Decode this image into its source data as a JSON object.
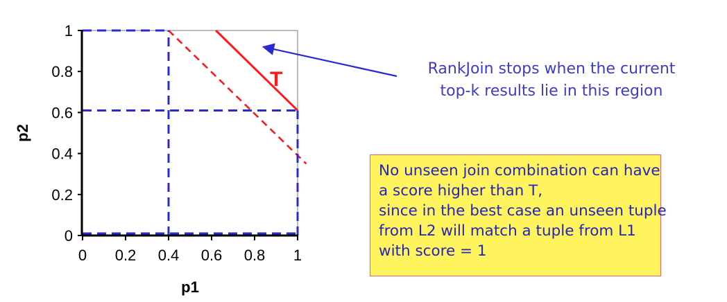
{
  "chart_data": {
    "type": "line",
    "xlabel": "p1",
    "ylabel": "p2",
    "xlim": [
      0,
      1
    ],
    "ylim": [
      0,
      1
    ],
    "x_ticks": [
      "0",
      "0.2",
      "0.4",
      "0.6",
      "0.8",
      "1"
    ],
    "y_ticks": [
      "0",
      "0.2",
      "0.4",
      "0.6",
      "0.8",
      "1"
    ],
    "grid": false,
    "threshold_label": "T",
    "series": [
      {
        "style": "red-solid",
        "points": [
          [
            0.62,
            1.0
          ],
          [
            1.0,
            0.61
          ]
        ]
      },
      {
        "style": "red-dashed",
        "points": [
          [
            0.4,
            1.0
          ],
          [
            1.04,
            0.35
          ]
        ]
      },
      {
        "style": "blue-dashed",
        "points": [
          [
            0.4,
            0.0
          ],
          [
            0.4,
            1.0
          ]
        ]
      },
      {
        "style": "blue-dashed",
        "points": [
          [
            0.0,
            0.61
          ],
          [
            1.0,
            0.61
          ]
        ]
      },
      {
        "style": "blue-dashed",
        "points": [
          [
            0.0,
            1.0
          ],
          [
            0.4,
            1.0
          ]
        ]
      },
      {
        "style": "blue-dashed",
        "points": [
          [
            0.0,
            0.01
          ],
          [
            1.0,
            0.01
          ]
        ]
      },
      {
        "style": "blue-dashed",
        "points": [
          [
            1.0,
            0.0
          ],
          [
            1.0,
            0.61
          ]
        ]
      }
    ]
  },
  "annotation": {
    "text": "RankJoin stops when the current\ntop-k results lie in this region",
    "arrow_target": [
      0.84,
      0.92
    ]
  },
  "note": {
    "lines": [
      "No unseen join combination can have",
      "a score higher than T,",
      "since in the best case an unseen tuple",
      "from L2 will match a tuple from L1",
      "with score = 1"
    ]
  },
  "colors": {
    "threshold": "#ff1a1a",
    "region": "#2a2ad0",
    "annotation_text": "#3d3dc2",
    "note_text": "#2525b8",
    "note_background": "#fff35e",
    "note_border": "#e06666"
  }
}
